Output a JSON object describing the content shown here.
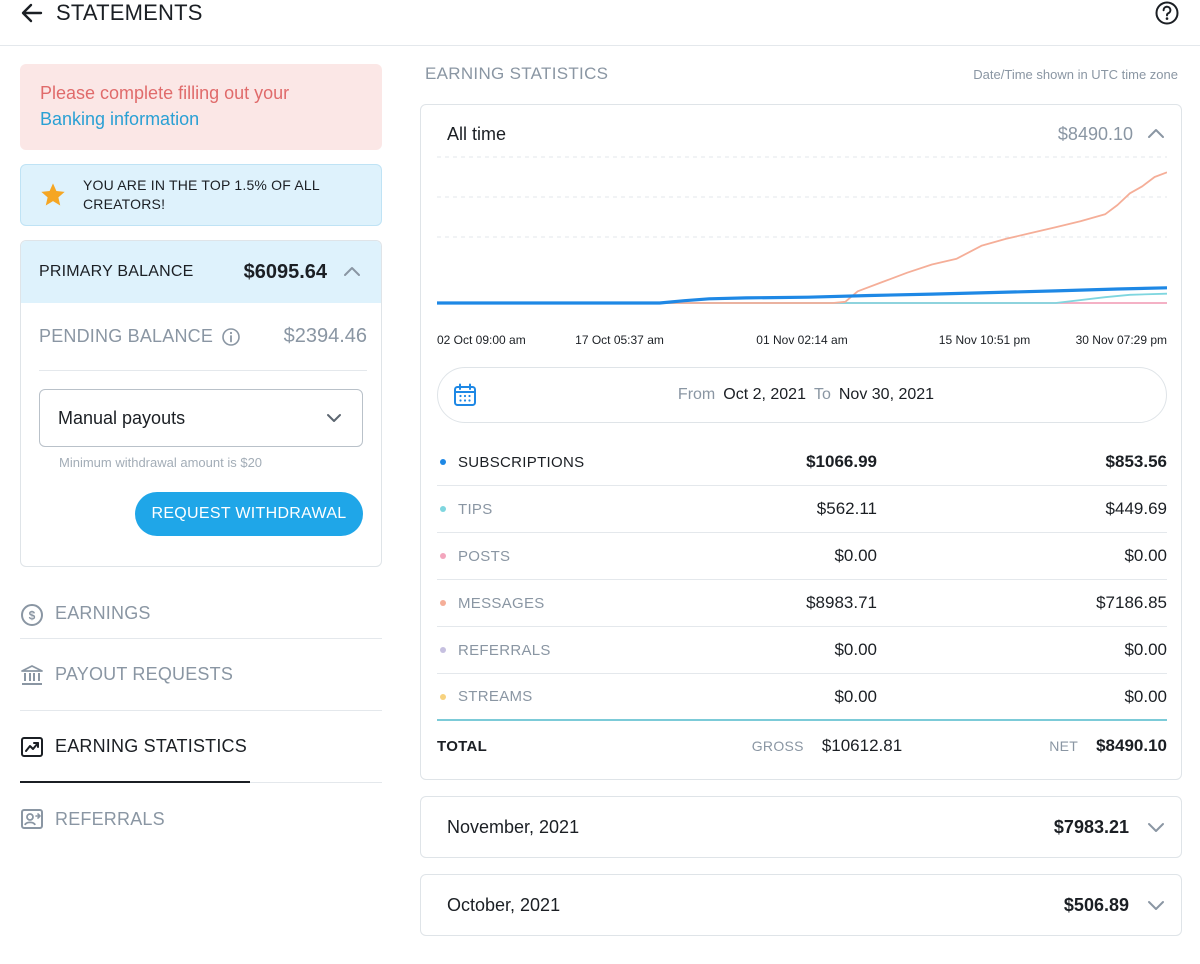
{
  "header": {
    "title": "STATEMENTS",
    "back_icon": "arrow-left-icon",
    "help_icon": "help-circle-icon"
  },
  "banking_alert": {
    "text": "Please complete filling out your",
    "link": "Banking information"
  },
  "top_badge": {
    "text": "YOU ARE IN THE TOP 1.5% OF ALL CREATORS!",
    "icon": "star-icon",
    "icon_color": "#f5a623"
  },
  "balance": {
    "primary_label": "PRIMARY BALANCE",
    "primary_value": "$6095.64",
    "pending_label": "PENDING BALANCE",
    "pending_value": "$2394.46",
    "payout_select_value": "Manual payouts",
    "min_note": "Minimum withdrawal amount is $20",
    "request_button": "REQUEST WITHDRAWAL"
  },
  "nav": {
    "items": [
      {
        "label": "EARNINGS",
        "icon": "dollar-circle-icon"
      },
      {
        "label": "PAYOUT REQUESTS",
        "icon": "bank-icon"
      },
      {
        "label": "EARNING STATISTICS",
        "icon": "trending-chart-icon"
      },
      {
        "label": "REFERRALS",
        "icon": "referral-user-icon"
      }
    ],
    "active": "EARNING STATISTICS"
  },
  "stats": {
    "section_title": "EARNING STATISTICS",
    "timezone_note": "Date/Time shown in UTC time zone",
    "period_label": "All time",
    "period_total": "$8490.10",
    "date_range": {
      "from_label": "From",
      "from_value": "Oct 2, 2021",
      "to_label": "To",
      "to_value": "Nov 30, 2021"
    },
    "rows": [
      {
        "name": "SUBSCRIPTIONS",
        "gross": "$1066.99",
        "net": "$853.56",
        "color": "#1e88e5"
      },
      {
        "name": "TIPS",
        "gross": "$562.11",
        "net": "$449.69",
        "color": "#7fd6df"
      },
      {
        "name": "POSTS",
        "gross": "$0.00",
        "net": "$0.00",
        "color": "#f3a6bd"
      },
      {
        "name": "MESSAGES",
        "gross": "$8983.71",
        "net": "$7186.85",
        "color": "#f5ae98"
      },
      {
        "name": "REFERRALS",
        "gross": "$0.00",
        "net": "$0.00",
        "color": "#c6c0e0"
      },
      {
        "name": "STREAMS",
        "gross": "$0.00",
        "net": "$0.00",
        "color": "#f7d27f"
      }
    ],
    "total": {
      "label": "TOTAL",
      "gross_label": "GROSS",
      "gross_value": "$10612.81",
      "net_label": "NET",
      "net_value": "$8490.10"
    }
  },
  "chart_data": {
    "type": "line",
    "x_tick_labels": [
      "02 Oct 09:00 am",
      "17 Oct 05:37 am",
      "01 Nov 02:14 am",
      "15 Nov 10:51 pm",
      "30 Nov 07:29 pm"
    ],
    "grid": true,
    "legend": "none",
    "series": [
      {
        "color": "#f5ae98",
        "x": [
          0,
          10,
          20,
          25,
          28,
          30,
          32,
          33,
          34,
          36,
          38,
          40,
          42,
          44,
          46,
          48,
          50,
          52,
          54,
          55,
          56,
          57,
          58,
          59
        ],
        "values": [
          0,
          0,
          0,
          0,
          0,
          0,
          0,
          5,
          50,
          90,
          130,
          165,
          190,
          245,
          275,
          300,
          325,
          350,
          380,
          420,
          470,
          500,
          540,
          560
        ]
      },
      {
        "color": "#1e88e5",
        "x": [
          0,
          10,
          18,
          20,
          22,
          25,
          30,
          35,
          40,
          45,
          50,
          55,
          59
        ],
        "values": [
          0,
          0,
          0,
          10,
          18,
          22,
          25,
          32,
          38,
          45,
          52,
          60,
          65
        ]
      },
      {
        "color": "#7fd6df",
        "x": [
          0,
          10,
          20,
          30,
          40,
          50,
          54,
          56,
          59
        ],
        "values": [
          0,
          0,
          0,
          0,
          0,
          0,
          25,
          35,
          40
        ]
      },
      {
        "color": "#f3a6bd",
        "x": [
          0,
          59
        ],
        "values": [
          0,
          0
        ]
      }
    ]
  },
  "months": [
    {
      "label": "November, 2021",
      "value": "$7983.21"
    },
    {
      "label": "October, 2021",
      "value": "$506.89"
    }
  ]
}
